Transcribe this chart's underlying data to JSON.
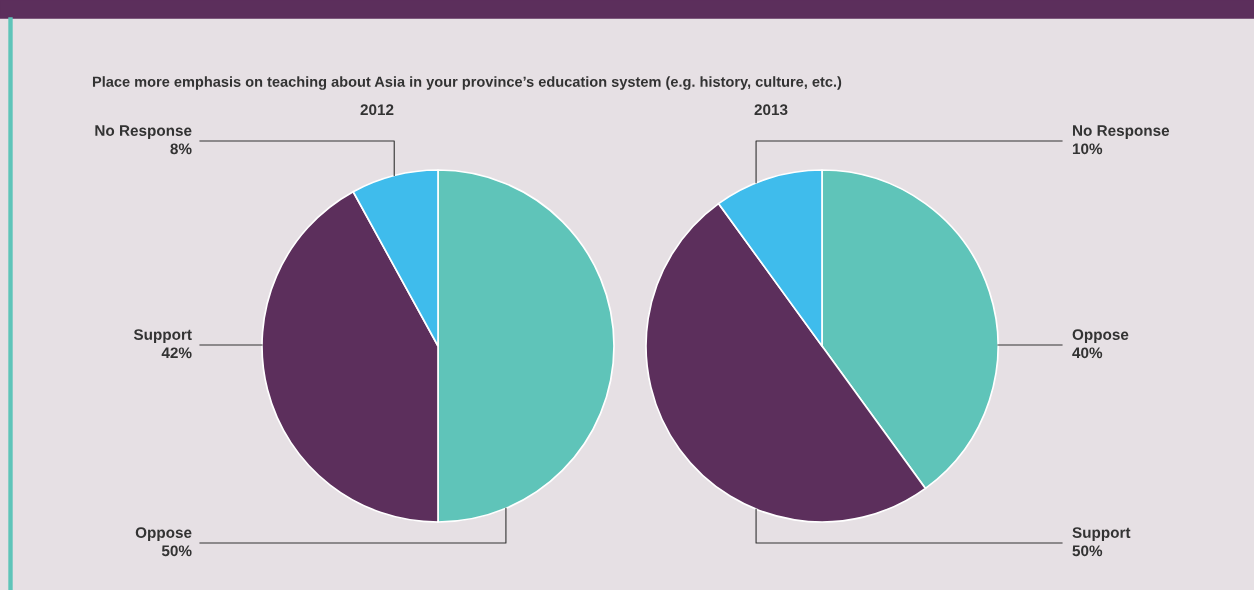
{
  "chart_data": [
    {
      "type": "pie",
      "title": "2012",
      "annotations": [
        "Place more emphasis on teaching about Asia in your province’s education system (e.g. history, culture, etc.)"
      ],
      "categories": [
        "Oppose",
        "Support",
        "No Response"
      ],
      "values": [
        50,
        42,
        8
      ],
      "value_labels": [
        "50%",
        "42%",
        "8%"
      ],
      "colors": [
        "#5fc4b9",
        "#5c2f5c",
        "#3fbcec"
      ],
      "legend": false
    },
    {
      "type": "pie",
      "title": "2013",
      "categories": [
        "Oppose",
        "Support",
        "No Response"
      ],
      "values": [
        40,
        50,
        10
      ],
      "value_labels": [
        "40%",
        "50%",
        "10%"
      ],
      "colors": [
        "#5fc4b9",
        "#5c2f5c",
        "#3fbcec"
      ],
      "legend": false
    }
  ]
}
